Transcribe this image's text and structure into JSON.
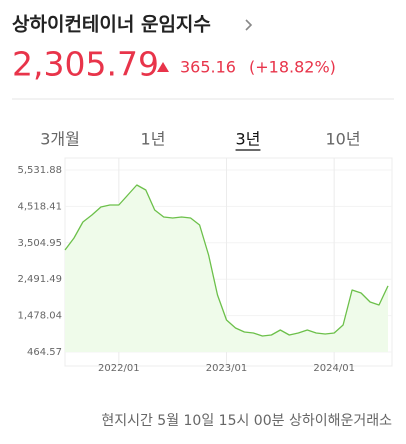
{
  "header": {
    "title": "상하이컨테이너 운임지수",
    "price": "2,305.79",
    "change": "365.16",
    "change_pct": "(+18.82%)"
  },
  "tabs": {
    "items": [
      "3개월",
      "1년",
      "3년",
      "10년"
    ],
    "selected": 2
  },
  "footer": "현지시간 5월 10일 15시 00분 상하이해운거래소",
  "chart_data": {
    "type": "line",
    "color": "#6cc04a",
    "area_color": "#effbea",
    "categories": [
      null,
      null,
      null,
      null,
      null,
      null,
      "2022/01",
      null,
      null,
      null,
      null,
      null,
      null,
      null,
      null,
      null,
      null,
      null,
      "2023/01",
      null,
      null,
      null,
      null,
      null,
      null,
      null,
      null,
      null,
      null,
      null,
      "2024/01",
      null,
      null,
      null,
      null,
      null,
      null
    ],
    "series": [
      {
        "values": [
          3304,
          3638,
          4084,
          4279,
          4501,
          4557,
          4557,
          4835,
          5114,
          4975,
          4418,
          4223,
          4195,
          4223,
          4195,
          4000,
          3165,
          2051,
          1355,
          1133,
          1021,
          993,
          910,
          938,
          1077,
          938,
          993,
          1077,
          993,
          966,
          993,
          1216,
          2191,
          2107,
          1857,
          1773,
          2305.79
        ]
      }
    ],
    "ylim": [
      464.57,
      5531.88
    ],
    "yticks": [
      {
        "value": 5531.88,
        "label": "5,531.88"
      },
      {
        "value": 4518.41,
        "label": "4,518.41"
      },
      {
        "value": 3504.95,
        "label": "3,504.95"
      },
      {
        "value": 2491.49,
        "label": "2,491.49"
      },
      {
        "value": 1478.04,
        "label": "1,478.04"
      },
      {
        "value": 464.57,
        "label": "464.57"
      }
    ],
    "grid": true
  }
}
